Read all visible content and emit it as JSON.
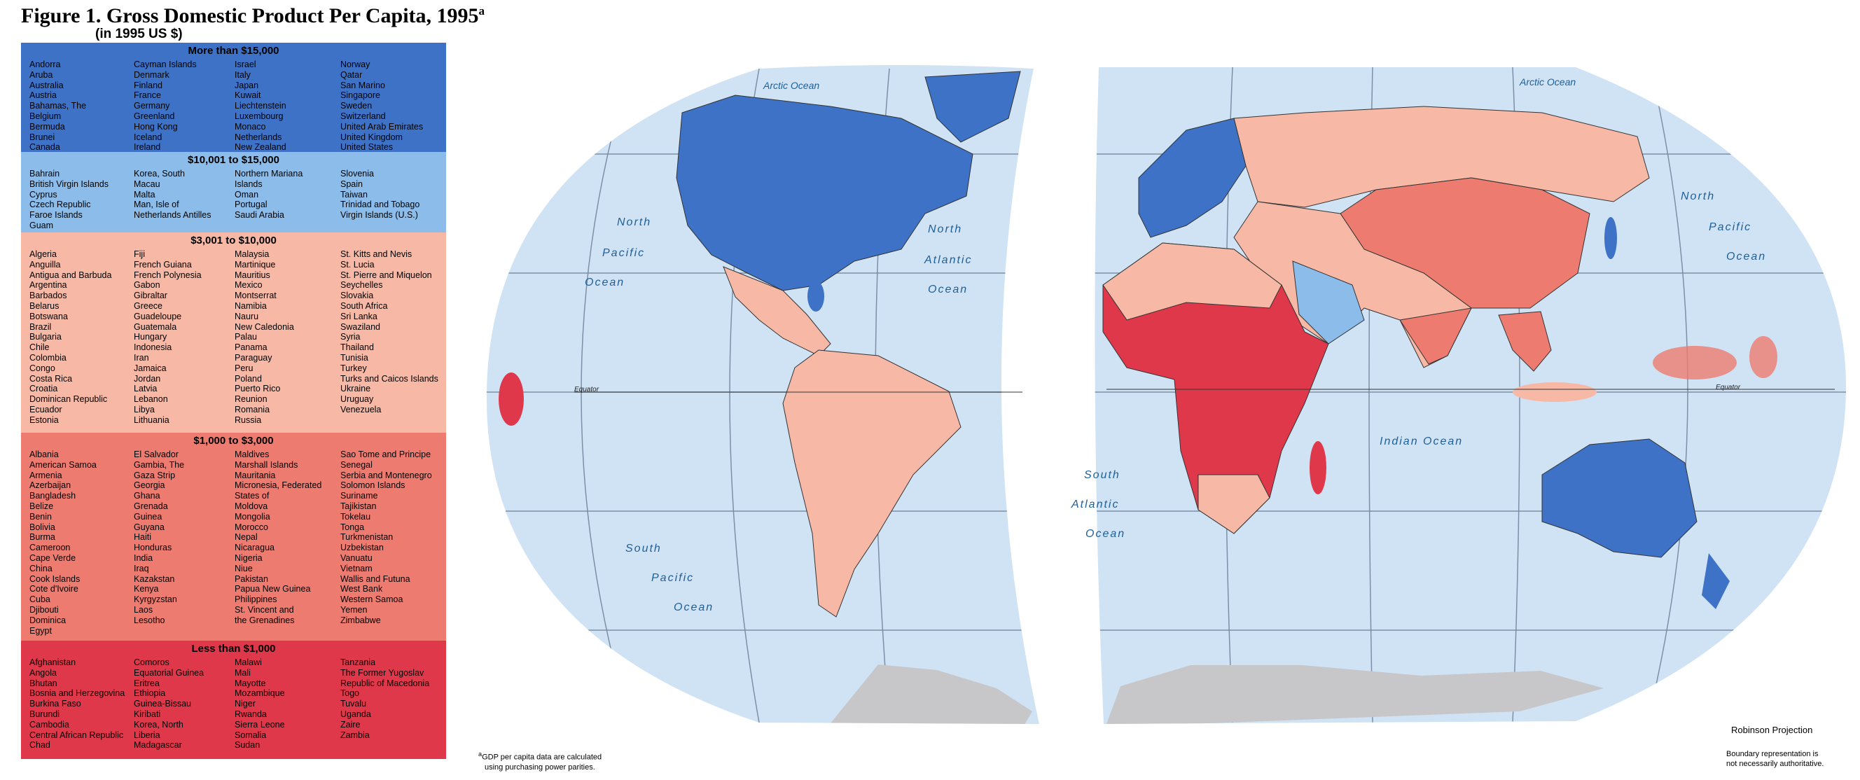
{
  "title": "Figure 1.  Gross Domestic Product Per Capita, 1995",
  "title_note": "a",
  "subtitle": "(in 1995 US $)",
  "legend": [
    {
      "heading": "More than $15,000",
      "color": "#3d72c6",
      "columns": [
        [
          "Andorra",
          "Aruba",
          "Australia",
          "Austria",
          "Bahamas, The",
          "Belgium",
          "Bermuda",
          "Brunei",
          "Canada"
        ],
        [
          "Cayman Islands",
          "Denmark",
          "Finland",
          "France",
          "Germany",
          "Greenland",
          "Hong Kong",
          "Iceland",
          "Ireland"
        ],
        [
          "Israel",
          "Italy",
          "Japan",
          "Kuwait",
          "Liechtenstein",
          "Luxembourg",
          "Monaco",
          "Netherlands",
          "New Zealand"
        ],
        [
          "Norway",
          "Qatar",
          "San Marino",
          "Singapore",
          "Sweden",
          "Switzerland",
          "United Arab Emirates",
          "United Kingdom",
          "United States"
        ]
      ]
    },
    {
      "heading": "$10,001 to $15,000",
      "color": "#8cbce9",
      "columns": [
        [
          "Bahrain",
          "British Virgin Islands",
          "Cyprus",
          "Czech Republic",
          "Faroe Islands",
          "Guam"
        ],
        [
          "Korea, South",
          "Macau",
          "Malta",
          "Man, Isle of",
          "Netherlands Antilles"
        ],
        [
          "Northern Mariana",
          "Islands",
          "Oman",
          "Portugal",
          "Saudi Arabia"
        ],
        [
          "Slovenia",
          "Spain",
          "Taiwan",
          "Trinidad and Tobago",
          "Virgin Islands (U.S.)"
        ]
      ]
    },
    {
      "heading": "$3,001 to $10,000",
      "color": "#f7b9a6",
      "columns": [
        [
          "Algeria",
          "Anguilla",
          "Antigua and Barbuda",
          "Argentina",
          "Barbados",
          "Belarus",
          "Botswana",
          "Brazil",
          "Bulgaria",
          "Chile",
          "Colombia",
          "Congo",
          "Costa Rica",
          "Croatia",
          "Dominican Republic",
          "Ecuador",
          "Estonia"
        ],
        [
          "Fiji",
          "French Guiana",
          "French Polynesia",
          "Gabon",
          "Gibraltar",
          "Greece",
          "Guadeloupe",
          "Guatemala",
          "Hungary",
          "Indonesia",
          "Iran",
          "Jamaica",
          "Jordan",
          "Latvia",
          "Lebanon",
          "Libya",
          "Lithuania"
        ],
        [
          "Malaysia",
          "Martinique",
          "Mauritius",
          "Mexico",
          "Montserrat",
          "Namibia",
          "Nauru",
          "New Caledonia",
          "Palau",
          "Panama",
          "Paraguay",
          "Peru",
          "Poland",
          "Puerto Rico",
          "Reunion",
          "Romania",
          "Russia"
        ],
        [
          "St. Kitts and Nevis",
          "St. Lucia",
          "St. Pierre and Miquelon",
          "Seychelles",
          "Slovakia",
          "South Africa",
          "Sri Lanka",
          "Swaziland",
          "Syria",
          "Thailand",
          "Tunisia",
          "Turkey",
          "Turks and Caicos Islands",
          "Ukraine",
          "Uruguay",
          "Venezuela"
        ]
      ]
    },
    {
      "heading": "$1,000 to $3,000",
      "color": "#ee7b6f",
      "columns": [
        [
          "Albania",
          "American Samoa",
          "Armenia",
          "Azerbaijan",
          "Bangladesh",
          "Belize",
          "Benin",
          "Bolivia",
          "Burma",
          "Cameroon",
          "Cape Verde",
          "China",
          "Cook Islands",
          "Cote d'Ivoire",
          "Cuba",
          "Djibouti",
          "Dominica",
          "Egypt"
        ],
        [
          "El Salvador",
          "Gambia, The",
          "Gaza Strip",
          "Georgia",
          "Ghana",
          "Grenada",
          "Guinea",
          "Guyana",
          "Haiti",
          "Honduras",
          "India",
          "Iraq",
          "Kazakstan",
          "Kenya",
          "Kyrgyzstan",
          "Laos",
          "Lesotho"
        ],
        [
          "Maldives",
          "Marshall Islands",
          "Mauritania",
          "Micronesia, Federated",
          "States of",
          "Moldova",
          "Mongolia",
          "Morocco",
          "Nepal",
          "Nicaragua",
          "Nigeria",
          "Niue",
          "Pakistan",
          "Papua New Guinea",
          "Philippines",
          "St. Vincent and",
          "the Grenadines"
        ],
        [
          "Sao Tome and Principe",
          "Senegal",
          "Serbia and Montenegro",
          "Solomon Islands",
          "Suriname",
          "Tajikistan",
          "Tokelau",
          "Tonga",
          "Turkmenistan",
          "Uzbekistan",
          "Vanuatu",
          "Vietnam",
          "Wallis and Futuna",
          "West Bank",
          "Western Samoa",
          "Yemen",
          "Zimbabwe"
        ]
      ]
    },
    {
      "heading": "Less than $1,000",
      "color": "#e0384b",
      "columns": [
        [
          "Afghanistan",
          "Angola",
          "Bhutan",
          "Bosnia and Herzegovina",
          "Burkina Faso",
          "Burundi",
          "Cambodia",
          "Central African Republic",
          "Chad"
        ],
        [
          "Comoros",
          "Equatorial Guinea",
          "Eritrea",
          "Ethiopia",
          "Guinea-Bissau",
          "Kiribati",
          "Korea, North",
          "Liberia",
          "Madagascar"
        ],
        [
          "Malawi",
          "Mali",
          "Mayotte",
          "Mozambique",
          "Niger",
          "Rwanda",
          "Sierra Leone",
          "Somalia",
          "Sudan"
        ],
        [
          "Tanzania",
          "The Former Yugoslav",
          "Republic of Macedonia",
          "Togo",
          "Tuvalu",
          "Uganda",
          "Zaire",
          "Zambia"
        ]
      ]
    }
  ],
  "map_labels": [
    "Arctic Ocean",
    "Arctic Ocean",
    "North",
    "Pacific",
    "Ocean",
    "North",
    "Atlantic",
    "Ocean",
    "South",
    "Pacific",
    "Ocean",
    "Equator",
    "Equator",
    "South",
    "Atlantic",
    "Ocean",
    "Indian Ocean",
    "North",
    "Pacific",
    "Ocean"
  ],
  "footnote": {
    "marker": "a",
    "lines": [
      "GDP per capita data are calculated",
      "using purchasing power parities."
    ]
  },
  "projection": "Robinson Projection",
  "disclaimer": [
    "Boundary representation is",
    "not necessarily authoritative."
  ]
}
